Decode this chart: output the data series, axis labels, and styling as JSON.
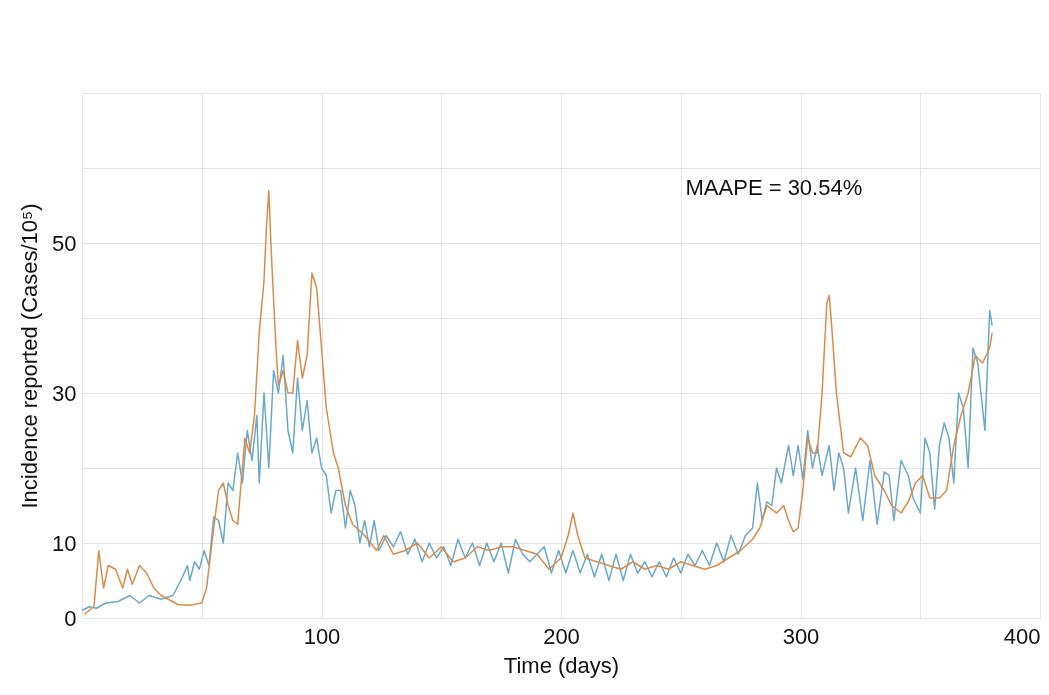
{
  "chart_data": {
    "type": "line",
    "xlabel": "Time (days)",
    "ylabel": "Incidence reported (Cases/10⁵)",
    "annotations": [
      "MAAPE = 30.54%"
    ],
    "xlim": [
      0,
      400
    ],
    "xticks": [
      {
        "value": 50,
        "label": null
      },
      100,
      {
        "value": 150,
        "label": null
      },
      200,
      {
        "value": 250,
        "label": null
      },
      300,
      {
        "value": 350,
        "label": null
      },
      400
    ],
    "ylim": [
      0,
      70
    ],
    "yticks": [
      0,
      10,
      {
        "value": 20,
        "label": null
      },
      30,
      {
        "value": 40,
        "label": null
      },
      50,
      {
        "value": 60,
        "label": null
      }
    ],
    "grid": true,
    "legend": false,
    "line_style": "solid",
    "marker": "none",
    "series": [
      {
        "color": "#6aa8cc",
        "x": [
          0,
          3,
          6,
          10,
          15,
          20,
          24,
          28,
          33,
          38,
          42,
          44,
          45,
          47,
          49,
          51,
          53,
          55,
          57,
          59,
          61,
          63,
          65,
          67,
          69,
          71,
          73,
          74,
          76,
          78,
          80,
          82,
          84,
          86,
          88,
          90,
          92,
          94,
          96,
          98,
          100,
          102,
          104,
          106,
          108,
          110,
          112,
          114,
          116,
          118,
          120,
          122,
          124,
          127,
          130,
          133,
          136,
          139,
          142,
          145,
          148,
          151,
          154,
          157,
          160,
          163,
          166,
          169,
          172,
          175,
          178,
          181,
          184,
          187,
          190,
          193,
          196,
          199,
          202,
          205,
          208,
          211,
          214,
          217,
          220,
          223,
          226,
          229,
          232,
          235,
          238,
          241,
          244,
          247,
          250,
          253,
          256,
          259,
          262,
          265,
          268,
          271,
          274,
          277,
          280,
          282,
          284,
          286,
          288,
          290,
          292,
          295,
          297,
          299,
          301,
          303,
          305,
          307,
          309,
          312,
          314,
          316,
          318,
          320,
          323,
          326,
          329,
          332,
          335,
          337,
          339,
          342,
          345,
          347,
          350,
          352,
          354,
          356,
          358,
          360,
          362,
          364,
          366,
          368,
          370,
          372,
          374,
          377,
          379,
          380
        ],
        "values": [
          1,
          1.5,
          1.3,
          2,
          2.2,
          3,
          2,
          3,
          2.5,
          3,
          5.5,
          7,
          5,
          7.5,
          6.5,
          9,
          7,
          13.5,
          13,
          10,
          18,
          17,
          22,
          18,
          25,
          21,
          27,
          18,
          30,
          20,
          33,
          30,
          35,
          25,
          22,
          32,
          25,
          29,
          22,
          24,
          20,
          19,
          14,
          17,
          17,
          12,
          17,
          15,
          10,
          13,
          9.5,
          13,
          9,
          11,
          9.5,
          11.5,
          8.5,
          10.5,
          7.5,
          10,
          8,
          9.5,
          7,
          10.5,
          8,
          10,
          7,
          10,
          7.5,
          10,
          6,
          10.5,
          8.5,
          7.5,
          8.5,
          9.5,
          6,
          9,
          6,
          9,
          6,
          8.5,
          5.5,
          8.5,
          5,
          8.5,
          5,
          8.5,
          6,
          7.5,
          5.5,
          7.5,
          5.5,
          8,
          6,
          8.5,
          7,
          9,
          7,
          10,
          7.5,
          11,
          8.5,
          11,
          12,
          18,
          13,
          15.5,
          15,
          20,
          18,
          23,
          19,
          23,
          18.5,
          25,
          20,
          23,
          19,
          23,
          17,
          22,
          20,
          14,
          20,
          13,
          21,
          12.5,
          19.5,
          19,
          13,
          21,
          19,
          16,
          14,
          24,
          22,
          14.5,
          23,
          26,
          24,
          18,
          30,
          28,
          20,
          36,
          34,
          25,
          41,
          39
        ]
      },
      {
        "color": "#d98c4a",
        "x": [
          1,
          5,
          7,
          9,
          11,
          14,
          17,
          19,
          21,
          24,
          27,
          30,
          33,
          36,
          40,
          45,
          50,
          52,
          55,
          57,
          59,
          61,
          63,
          65,
          68,
          70,
          72,
          74,
          76,
          77,
          78,
          79,
          81,
          82,
          84,
          86,
          88,
          90,
          92,
          94,
          96,
          98,
          100,
          102,
          105,
          107,
          110,
          113,
          118,
          123,
          126,
          130,
          135,
          140,
          145,
          150,
          155,
          160,
          165,
          170,
          175,
          180,
          185,
          190,
          195,
          200,
          203,
          205,
          207,
          210,
          215,
          220,
          225,
          230,
          235,
          240,
          245,
          250,
          255,
          260,
          265,
          270,
          275,
          280,
          283,
          286,
          290,
          293,
          295,
          297,
          299,
          301,
          303,
          305,
          307,
          309,
          311,
          312,
          313,
          315,
          318,
          321,
          325,
          328,
          331,
          335,
          338,
          342,
          345,
          348,
          351,
          354,
          358,
          361,
          364,
          367,
          370,
          373,
          376,
          379,
          380
        ],
        "values": [
          0.5,
          1.5,
          9,
          4,
          7,
          6.5,
          4,
          6.5,
          4.5,
          7,
          6,
          4,
          3,
          2.5,
          1.8,
          1.7,
          2,
          4,
          12,
          17,
          18,
          15,
          13,
          12.5,
          24,
          22,
          27,
          38,
          45,
          52,
          57,
          49,
          36,
          31,
          33,
          30,
          30,
          37,
          32,
          35,
          46,
          44,
          36,
          28,
          22,
          20,
          15,
          12.5,
          11,
          9,
          11,
          8.5,
          9,
          10,
          8,
          9.5,
          7.5,
          8,
          9.5,
          9,
          9.5,
          9.5,
          9,
          8.5,
          6.5,
          8,
          11,
          14,
          11,
          8,
          7.5,
          7,
          6.5,
          7.5,
          6.5,
          7,
          6.5,
          7.5,
          7,
          6.5,
          7,
          8,
          9,
          10.5,
          12,
          15,
          14,
          15,
          13,
          11.5,
          12,
          17,
          24,
          22,
          22,
          30,
          42,
          43,
          39,
          30,
          22,
          21.5,
          24,
          23,
          19,
          17,
          15,
          14,
          15.5,
          18,
          19,
          16,
          16,
          17,
          23,
          27,
          30,
          35,
          34,
          36,
          38
        ]
      }
    ]
  }
}
